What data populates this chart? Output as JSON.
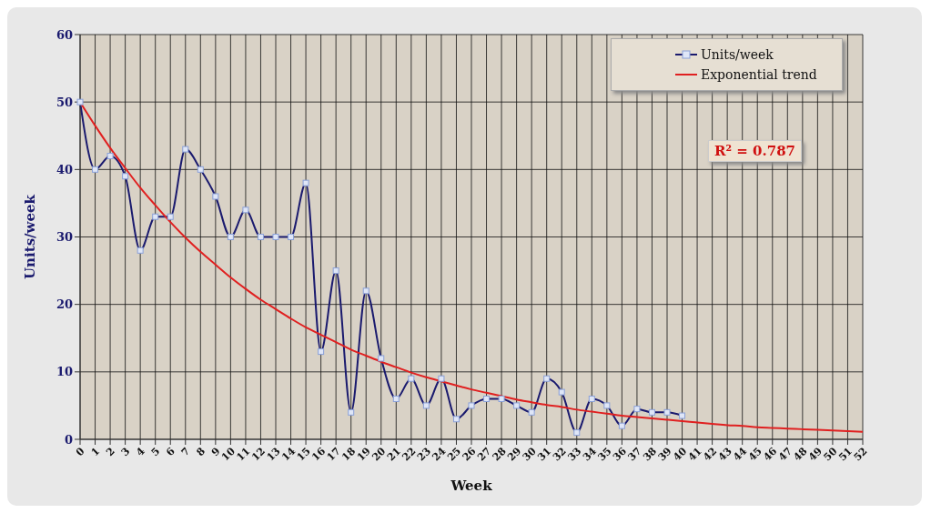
{
  "chart_data": {
    "type": "line",
    "xlabel": "Week",
    "ylabel": "Units/week",
    "categories": [
      "0",
      "1",
      "2",
      "3",
      "4",
      "5",
      "6",
      "7",
      "8",
      "9",
      "10",
      "11",
      "12",
      "13",
      "14",
      "15",
      "16",
      "17",
      "18",
      "19",
      "20",
      "21",
      "22",
      "23",
      "24",
      "25",
      "26",
      "27",
      "28",
      "29",
      "30",
      "31",
      "32",
      "33",
      "34",
      "35",
      "36",
      "37",
      "38",
      "39",
      "40",
      "41",
      "42",
      "43",
      "44",
      "45",
      "46",
      "47",
      "48",
      "49",
      "50",
      "51",
      "52"
    ],
    "series": [
      {
        "name": "Units/week",
        "color": "#1a1a6e",
        "marker": "square",
        "values": [
          50,
          40,
          42,
          39,
          28,
          33,
          33,
          43,
          40,
          36,
          30,
          34,
          30,
          30,
          30,
          38,
          13,
          25,
          4,
          22,
          12,
          6,
          9,
          5,
          9,
          3,
          5,
          6,
          6,
          5,
          4,
          9,
          7,
          1,
          6,
          5,
          2,
          4.5,
          4,
          4,
          3.5,
          null,
          null,
          null,
          null,
          null,
          null,
          null,
          null,
          null,
          null,
          null,
          null
        ]
      },
      {
        "name": "Exponential trend",
        "color": "#e02020",
        "marker": "none",
        "values": [
          50,
          46.5,
          43.2,
          40.2,
          37.3,
          34.7,
          32.2,
          29.9,
          27.8,
          25.9,
          24,
          22.3,
          20.7,
          19.3,
          17.9,
          16.6,
          15.5,
          14.4,
          13.3,
          12.4,
          11.5,
          10.7,
          9.9,
          9.2,
          8.6,
          8,
          7.4,
          6.9,
          6.4,
          5.9,
          5.5,
          5.1,
          4.8,
          4.4,
          4.1,
          3.8,
          3.5,
          3.3,
          3.1,
          2.9,
          2.7,
          2.5,
          2.3,
          2.1,
          2,
          1.8,
          1.7,
          1.6,
          1.5,
          1.4,
          1.3,
          1.2,
          1.1
        ]
      }
    ],
    "ylim": [
      0,
      60
    ],
    "yticks": [
      0,
      10,
      20,
      30,
      40,
      50,
      60
    ],
    "grid": true,
    "legend": "top right",
    "annotations": [
      "R² = 0.787"
    ]
  }
}
